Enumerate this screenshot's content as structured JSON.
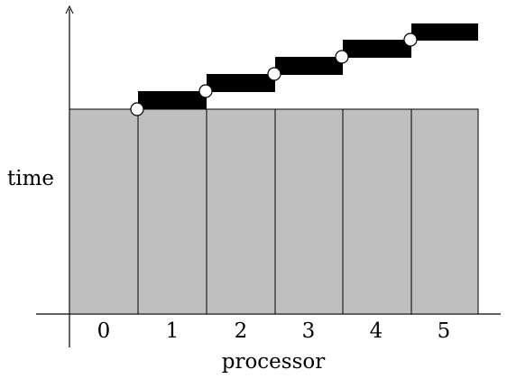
{
  "diagram": {
    "y_axis_label": "time",
    "x_axis_label": "processor",
    "processors": [
      "0",
      "1",
      "2",
      "3",
      "4",
      "5"
    ],
    "colors": {
      "compute_block": "#bfbfbf",
      "comm_bar": "#000000",
      "marker": "#ffffff",
      "line": "#000000"
    }
  }
}
